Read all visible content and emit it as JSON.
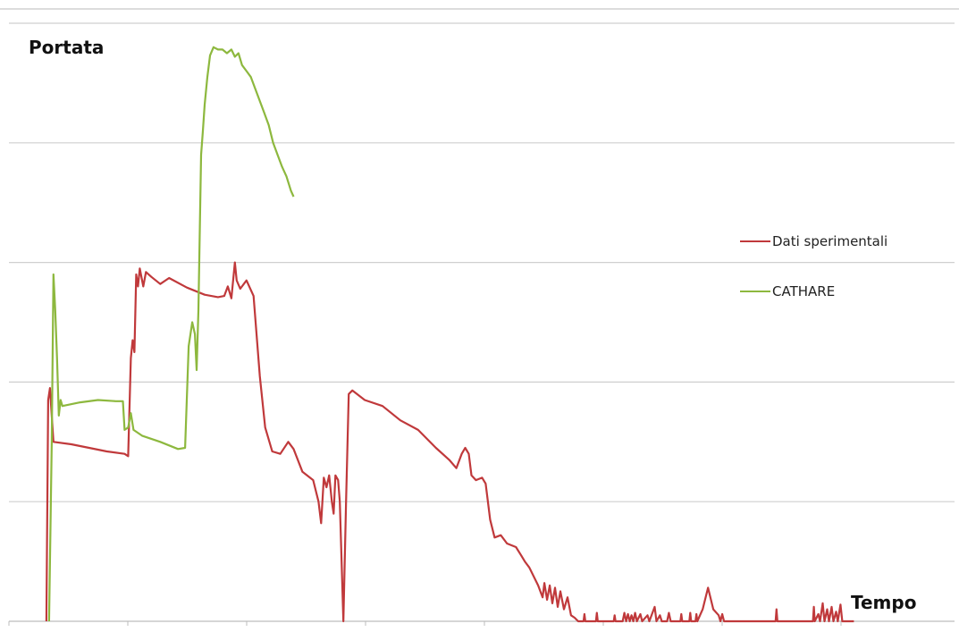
{
  "chart_data": {
    "type": "line",
    "title": "",
    "ylabel": "Portata",
    "xlabel": "Tempo",
    "xlim": [
      0,
      1000
    ],
    "ylim": [
      0,
      5
    ],
    "grid": true,
    "legend_position": "right",
    "series": [
      {
        "name": "Dati sperimentali",
        "color": "#c0393b",
        "points": [
          [
            22,
            0
          ],
          [
            24,
            1.85
          ],
          [
            26,
            1.95
          ],
          [
            28,
            1.72
          ],
          [
            30,
            1.5
          ],
          [
            50,
            1.48
          ],
          [
            70,
            1.45
          ],
          [
            90,
            1.42
          ],
          [
            110,
            1.4
          ],
          [
            114,
            1.38
          ],
          [
            117,
            2.2
          ],
          [
            119,
            2.35
          ],
          [
            121,
            2.25
          ],
          [
            123,
            2.9
          ],
          [
            125,
            2.8
          ],
          [
            127,
            2.95
          ],
          [
            131,
            2.8
          ],
          [
            134,
            2.92
          ],
          [
            140,
            2.88
          ],
          [
            150,
            2.82
          ],
          [
            160,
            2.87
          ],
          [
            180,
            2.79
          ],
          [
            200,
            2.73
          ],
          [
            215,
            2.71
          ],
          [
            222,
            2.72
          ],
          [
            226,
            2.8
          ],
          [
            230,
            2.7
          ],
          [
            234,
            3.0
          ],
          [
            236,
            2.85
          ],
          [
            240,
            2.78
          ],
          [
            247,
            2.85
          ],
          [
            255,
            2.72
          ],
          [
            262,
            2.05
          ],
          [
            268,
            1.62
          ],
          [
            276,
            1.42
          ],
          [
            285,
            1.4
          ],
          [
            294,
            1.5
          ],
          [
            300,
            1.44
          ],
          [
            310,
            1.25
          ],
          [
            322,
            1.18
          ],
          [
            328,
            1.0
          ],
          [
            331,
            0.82
          ],
          [
            334,
            1.2
          ],
          [
            337,
            1.12
          ],
          [
            340,
            1.22
          ],
          [
            343,
            1.0
          ],
          [
            345,
            0.9
          ],
          [
            347,
            1.22
          ],
          [
            350,
            1.18
          ],
          [
            352,
            1.0
          ],
          [
            356,
            0
          ],
          [
            359,
            1.0
          ],
          [
            362,
            1.9
          ],
          [
            366,
            1.93
          ],
          [
            380,
            1.85
          ],
          [
            400,
            1.8
          ],
          [
            420,
            1.68
          ],
          [
            440,
            1.6
          ],
          [
            460,
            1.45
          ],
          [
            475,
            1.35
          ],
          [
            483,
            1.28
          ],
          [
            489,
            1.4
          ],
          [
            493,
            1.45
          ],
          [
            497,
            1.4
          ],
          [
            500,
            1.22
          ],
          [
            505,
            1.18
          ],
          [
            512,
            1.2
          ],
          [
            516,
            1.15
          ],
          [
            521,
            0.85
          ],
          [
            526,
            0.7
          ],
          [
            533,
            0.72
          ],
          [
            540,
            0.65
          ],
          [
            550,
            0.62
          ],
          [
            556,
            0.55
          ],
          [
            560,
            0.5
          ],
          [
            565,
            0.45
          ],
          [
            575,
            0.3
          ],
          [
            580,
            0.2
          ],
          [
            582,
            0.32
          ],
          [
            585,
            0.18
          ],
          [
            588,
            0.3
          ],
          [
            591,
            0.15
          ],
          [
            594,
            0.28
          ],
          [
            597,
            0.12
          ],
          [
            600,
            0.25
          ],
          [
            604,
            0.1
          ],
          [
            608,
            0.2
          ],
          [
            612,
            0.05
          ],
          [
            616,
            0.03
          ],
          [
            620,
            0
          ],
          [
            626,
            0
          ],
          [
            627,
            0.06
          ],
          [
            628,
            0
          ],
          [
            640,
            0
          ],
          [
            641,
            0.07
          ],
          [
            642,
            0
          ],
          [
            660,
            0
          ],
          [
            661,
            0.05
          ],
          [
            662,
            0
          ],
          [
            670,
            0
          ],
          [
            672,
            0.07
          ],
          [
            674,
            0
          ],
          [
            676,
            0.06
          ],
          [
            678,
            0
          ],
          [
            680,
            0.05
          ],
          [
            682,
            0
          ],
          [
            684,
            0.07
          ],
          [
            686,
            0
          ],
          [
            690,
            0.06
          ],
          [
            692,
            0
          ],
          [
            698,
            0.05
          ],
          [
            700,
            0
          ],
          [
            706,
            0.12
          ],
          [
            708,
            0
          ],
          [
            712,
            0.05
          ],
          [
            714,
            0
          ],
          [
            720,
            0
          ],
          [
            722,
            0.07
          ],
          [
            724,
            0
          ],
          [
            735,
            0
          ],
          [
            736,
            0.06
          ],
          [
            737,
            0
          ],
          [
            745,
            0
          ],
          [
            746,
            0.07
          ],
          [
            747,
            0
          ],
          [
            752,
            0
          ],
          [
            753,
            0.06
          ],
          [
            754,
            0
          ],
          [
            760,
            0.1
          ],
          [
            766,
            0.28
          ],
          [
            772,
            0.1
          ],
          [
            778,
            0.05
          ],
          [
            780,
            0
          ],
          [
            782,
            0.06
          ],
          [
            784,
            0
          ],
          [
            790,
            0
          ],
          [
            842,
            0
          ],
          [
            843,
            0.1
          ],
          [
            844,
            0
          ],
          [
            884,
            0
          ],
          [
            885,
            0.12
          ],
          [
            886,
            0
          ],
          [
            890,
            0.06
          ],
          [
            892,
            0
          ],
          [
            895,
            0.15
          ],
          [
            897,
            0
          ],
          [
            900,
            0.1
          ],
          [
            902,
            0
          ],
          [
            905,
            0.12
          ],
          [
            907,
            0
          ],
          [
            910,
            0.08
          ],
          [
            912,
            0
          ],
          [
            915,
            0.14
          ],
          [
            917,
            0
          ],
          [
            930,
            0
          ]
        ]
      },
      {
        "name": "CATHARE",
        "color": "#8db83e",
        "points": [
          [
            25,
            0
          ],
          [
            28,
            1.5
          ],
          [
            30,
            2.9
          ],
          [
            32,
            2.6
          ],
          [
            34,
            2.2
          ],
          [
            36,
            1.72
          ],
          [
            38,
            1.85
          ],
          [
            40,
            1.8
          ],
          [
            60,
            1.83
          ],
          [
            80,
            1.85
          ],
          [
            100,
            1.84
          ],
          [
            108,
            1.84
          ],
          [
            110,
            1.6
          ],
          [
            114,
            1.62
          ],
          [
            117,
            1.74
          ],
          [
            120,
            1.6
          ],
          [
            130,
            1.55
          ],
          [
            150,
            1.5
          ],
          [
            170,
            1.44
          ],
          [
            178,
            1.45
          ],
          [
            182,
            2.3
          ],
          [
            186,
            2.5
          ],
          [
            189,
            2.4
          ],
          [
            191,
            2.1
          ],
          [
            193,
            2.6
          ],
          [
            196,
            3.9
          ],
          [
            198,
            4.1
          ],
          [
            200,
            4.32
          ],
          [
            203,
            4.55
          ],
          [
            206,
            4.73
          ],
          [
            210,
            4.8
          ],
          [
            215,
            4.78
          ],
          [
            220,
            4.78
          ],
          [
            225,
            4.75
          ],
          [
            230,
            4.78
          ],
          [
            234,
            4.72
          ],
          [
            238,
            4.75
          ],
          [
            242,
            4.65
          ],
          [
            247,
            4.6
          ],
          [
            252,
            4.55
          ],
          [
            257,
            4.45
          ],
          [
            262,
            4.35
          ],
          [
            267,
            4.25
          ],
          [
            272,
            4.15
          ],
          [
            277,
            4.0
          ],
          [
            282,
            3.9
          ],
          [
            287,
            3.8
          ],
          [
            292,
            3.72
          ],
          [
            297,
            3.6
          ],
          [
            300,
            3.55
          ]
        ]
      }
    ]
  }
}
